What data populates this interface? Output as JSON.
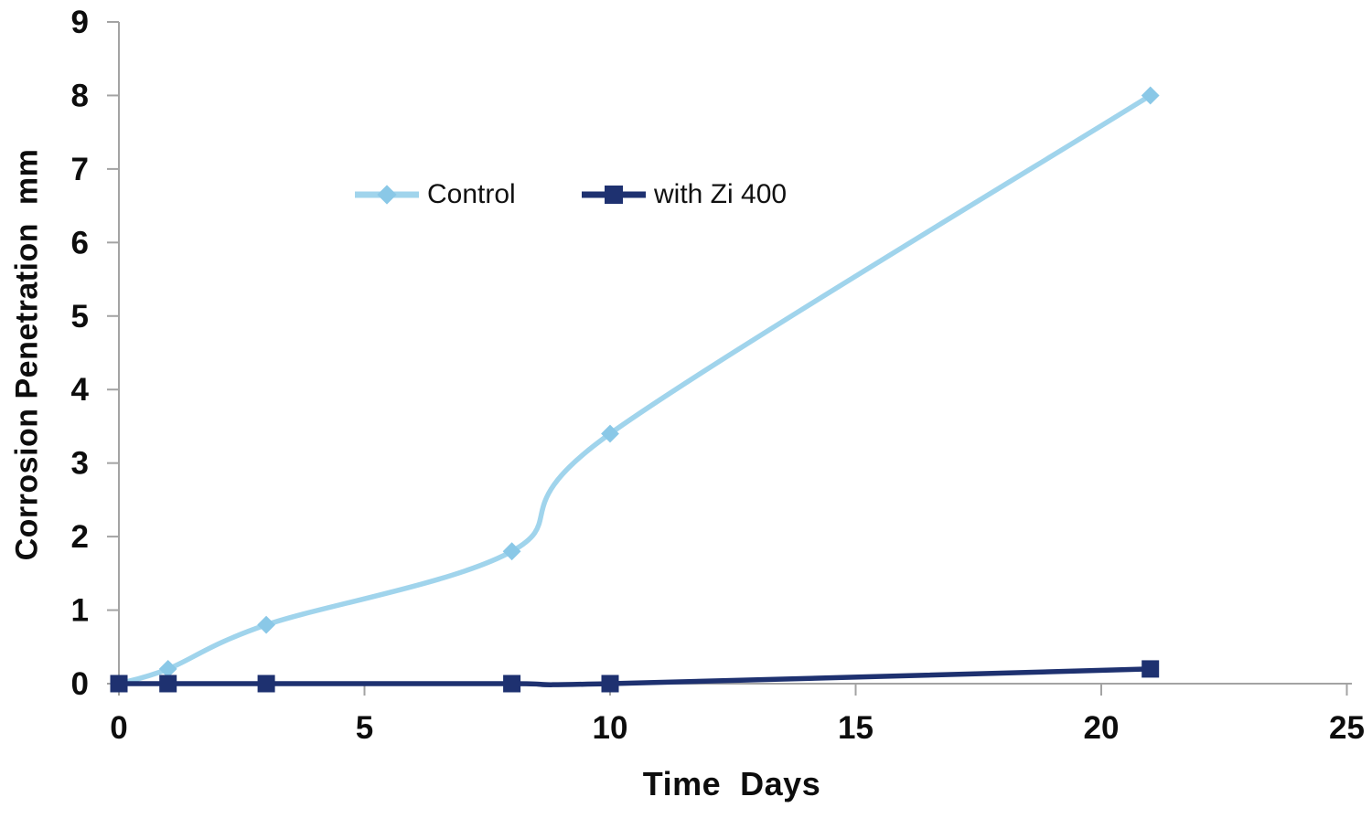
{
  "chart_data": {
    "type": "line",
    "title": "",
    "xlabel": "Time  Days",
    "ylabel": "Corrosion Penetration  mm",
    "xlim": [
      0,
      25
    ],
    "ylim": [
      0,
      9
    ],
    "x_ticks": [
      0,
      5,
      10,
      15,
      20,
      25
    ],
    "y_ticks": [
      0,
      1,
      2,
      3,
      4,
      5,
      6,
      7,
      8,
      9
    ],
    "grid": false,
    "legend_position": "top-center-inside",
    "axis_color": "#a3a3a3",
    "tick_label_color": "#0d0d0d",
    "series": [
      {
        "name": "Control",
        "color": "#a0d4ec",
        "marker": "diamond",
        "marker_color": "#8ac8e7",
        "smooth": true,
        "x": [
          0,
          1,
          3,
          8,
          10,
          21
        ],
        "y": [
          0,
          0.2,
          0.8,
          1.8,
          3.4,
          8
        ]
      },
      {
        "name": "with Zi 400",
        "color": "#1e3170",
        "marker": "square",
        "marker_color": "#1e3170",
        "smooth": true,
        "x": [
          0,
          1,
          3,
          8,
          10,
          21
        ],
        "y": [
          0,
          0,
          0,
          0,
          0,
          0.2
        ]
      }
    ]
  }
}
